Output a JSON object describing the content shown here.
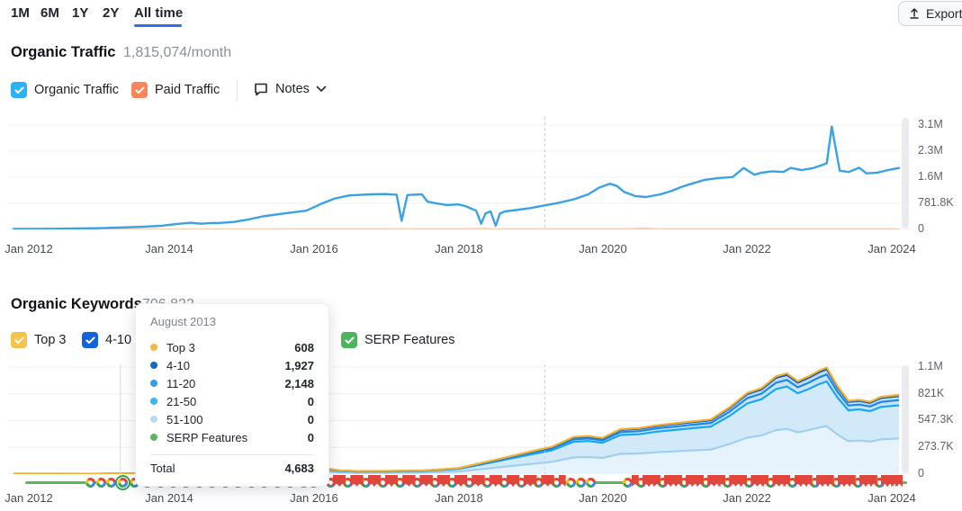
{
  "toolbar": {
    "ranges": [
      {
        "label": "1M"
      },
      {
        "label": "6M"
      },
      {
        "label": "1Y"
      },
      {
        "label": "2Y"
      },
      {
        "label": "All time"
      }
    ],
    "active_range": "All time",
    "export_label": "Export"
  },
  "traffic_section": {
    "title": "Organic Traffic",
    "value": "1,815,074/month",
    "legend_organic": "Organic Traffic",
    "legend_paid": "Paid Traffic",
    "notes_label": "Notes",
    "organic_checkbox_color": "#2cb1f2",
    "paid_checkbox_color": "#f9865a"
  },
  "keywords_section": {
    "title": "Organic Keywords",
    "value": "706,822",
    "legend_top3": "Top 3",
    "legend_410": "4-10",
    "legend_serp": "SERP Features",
    "top3_checkbox_color": "#f5c24b",
    "p410_checkbox_color": "#1464d8",
    "serp_checkbox_color": "#4db45e"
  },
  "tooltip": {
    "date": "August 2013",
    "rows": [
      {
        "label": "Top 3",
        "value": "608",
        "color": "#f6b93f"
      },
      {
        "label": "4-10",
        "value": "1,927",
        "color": "#1468c8"
      },
      {
        "label": "11-20",
        "value": "2,148",
        "color": "#2d9df0"
      },
      {
        "label": "21-50",
        "value": "0",
        "color": "#36b6f8"
      },
      {
        "label": "51-100",
        "value": "0",
        "color": "#b4dcf7"
      },
      {
        "label": "SERP Features",
        "value": "0",
        "color": "#5cb85c"
      }
    ],
    "total_label": "Total",
    "total_value": "4,683"
  },
  "chart_data": [
    {
      "type": "line",
      "title": "Organic Traffic",
      "unit": "thousands_per_month",
      "x_axis": {
        "ticks": [
          {
            "label": "Jan 2012",
            "year": 2012
          },
          {
            "label": "Jan 2014",
            "year": 2014
          },
          {
            "label": "Jan 2016",
            "year": 2016
          },
          {
            "label": "Jan 2018",
            "year": 2018
          },
          {
            "label": "Jan 2020",
            "year": 2020
          },
          {
            "label": "Jan 2022",
            "year": 2022
          },
          {
            "label": "Jan 2024",
            "year": 2024
          }
        ]
      },
      "y_axis": {
        "ticks": [
          {
            "label": "3.1M",
            "value": 3127
          },
          {
            "label": "2.3M",
            "value": 2345
          },
          {
            "label": "1.6M",
            "value": 1564
          },
          {
            "label": "781.8K",
            "value": 782
          },
          {
            "label": "0",
            "value": 0
          }
        ]
      },
      "dashed_line_year": 2019.2,
      "series": [
        {
          "name": "Organic Traffic",
          "color": "#3aa2e4",
          "width": 2.4,
          "x": [
            2011.85,
            2012.1,
            2012.4,
            2012.7,
            2013,
            2013.3,
            2013.6,
            2013.9,
            2014.1,
            2014.3,
            2014.45,
            2014.55,
            2014.7,
            2014.9,
            2015.1,
            2015.3,
            2015.6,
            2015.9,
            2016.1,
            2016.3,
            2016.5,
            2016.8,
            2017,
            2017.15,
            2017.22,
            2017.3,
            2017.5,
            2017.58,
            2017.7,
            2017.85,
            2018,
            2018.1,
            2018.25,
            2018.32,
            2018.38,
            2018.45,
            2018.52,
            2018.58,
            2018.65,
            2018.8,
            2019,
            2019.2,
            2019.4,
            2019.6,
            2019.8,
            2019.95,
            2020.1,
            2020.2,
            2020.3,
            2020.45,
            2020.6,
            2020.7,
            2020.8,
            2020.95,
            2021.1,
            2021.25,
            2021.4,
            2021.6,
            2021.8,
            2021.95,
            2022.1,
            2022.2,
            2022.35,
            2022.5,
            2022.6,
            2022.75,
            2022.9,
            2023,
            2023.1,
            2023.17,
            2023.28,
            2023.4,
            2023.55,
            2023.65,
            2023.8,
            2023.95,
            2024.1
          ],
          "values": [
            15,
            17,
            20,
            26,
            35,
            55,
            75,
            110,
            160,
            200,
            170,
            185,
            195,
            225,
            300,
            390,
            480,
            560,
            760,
            930,
            1020,
            1050,
            1060,
            1040,
            260,
            1030,
            1050,
            830,
            780,
            730,
            750,
            700,
            560,
            170,
            480,
            540,
            110,
            480,
            540,
            580,
            640,
            720,
            800,
            900,
            1050,
            1250,
            1370,
            1300,
            1120,
            1000,
            970,
            1010,
            1050,
            1150,
            1280,
            1380,
            1480,
            1540,
            1570,
            1840,
            1640,
            1700,
            1740,
            1720,
            1840,
            1780,
            1830,
            1900,
            1980,
            3080,
            1760,
            1720,
            1850,
            1680,
            1700,
            1780,
            1840
          ]
        },
        {
          "name": "Paid Traffic",
          "color": "#f7cdb1",
          "width": 2,
          "x": [
            2011.85,
            2016,
            2018.1,
            2018.3,
            2018.5,
            2020.3,
            2020.55,
            2020.8,
            2024.1
          ],
          "values": [
            4,
            5,
            6,
            22,
            6,
            8,
            30,
            8,
            6
          ]
        }
      ]
    },
    {
      "type": "area",
      "stacked": true,
      "title": "Organic Keywords",
      "unit": "thousands_of_keywords",
      "x_axis": {
        "ticks": [
          {
            "label": "Jan 2012",
            "year": 2012
          },
          {
            "label": "Jan 2014",
            "year": 2014
          },
          {
            "label": "Jan 2016",
            "year": 2016
          },
          {
            "label": "Jan 2018",
            "year": 2018
          },
          {
            "label": "Jan 2020",
            "year": 2020
          },
          {
            "label": "Jan 2022",
            "year": 2022
          },
          {
            "label": "Jan 2024",
            "year": 2024
          }
        ]
      },
      "y_axis": {
        "ticks": [
          {
            "label": "1.1M",
            "value": 1095
          },
          {
            "label": "821K",
            "value": 821
          },
          {
            "label": "547.3K",
            "value": 547
          },
          {
            "label": "273.7K",
            "value": 274
          },
          {
            "label": "0",
            "value": 0
          }
        ]
      },
      "dashed_line_year": 2019.2,
      "hover_line_year": 2013.33,
      "stack_order": [
        "51-100",
        "21-50",
        "11-20",
        "4-10",
        "Top 3"
      ],
      "x": [
        2011.85,
        2012.5,
        2013,
        2013.5,
        2014,
        2014.5,
        2015,
        2015.5,
        2016,
        2016.2,
        2016.35,
        2016.6,
        2017,
        2017.5,
        2018,
        2018.3,
        2018.6,
        2019,
        2019.3,
        2019.6,
        2019.8,
        2020,
        2020.25,
        2020.5,
        2020.75,
        2021,
        2021.25,
        2021.5,
        2021.75,
        2022,
        2022.2,
        2022.4,
        2022.55,
        2022.7,
        2022.85,
        2023,
        2023.1,
        2023.25,
        2023.4,
        2023.55,
        2023.7,
        2023.85,
        2024.1
      ],
      "series": [
        {
          "name": "Top 3",
          "line_color": "#f2b12e",
          "fill_color": "#badbf4",
          "values": [
            0,
            0,
            1,
            1,
            1,
            1,
            1,
            1,
            1,
            1,
            1,
            1,
            1,
            1,
            1,
            2,
            2,
            3,
            4,
            6,
            6,
            6,
            7,
            7,
            8,
            8,
            8,
            8,
            10,
            12,
            13,
            15,
            15,
            14,
            15,
            16,
            16,
            14,
            11,
            11,
            11,
            12,
            12
          ]
        },
        {
          "name": "4-10",
          "line_color": "#0d58c6",
          "fill_color": "#c1dff6",
          "values": [
            0,
            0,
            0,
            0,
            1,
            1,
            1,
            2,
            2,
            3,
            2,
            2,
            2,
            2,
            3,
            6,
            8,
            12,
            14,
            19,
            20,
            19,
            23,
            24,
            25,
            26,
            27,
            28,
            34,
            42,
            44,
            50,
            52,
            48,
            50,
            53,
            55,
            45,
            38,
            38,
            37,
            40,
            41
          ]
        },
        {
          "name": "11-20",
          "line_color": "#1e88e5",
          "fill_color": "#c9e4f7",
          "values": [
            0,
            0,
            0,
            0,
            1,
            1,
            2,
            2,
            3,
            4,
            2,
            2,
            2,
            2,
            4,
            7,
            10,
            15,
            18,
            25,
            25,
            24,
            30,
            31,
            33,
            34,
            35,
            36,
            44,
            54,
            57,
            65,
            67,
            62,
            65,
            69,
            71,
            59,
            49,
            49,
            48,
            51,
            53
          ]
        },
        {
          "name": "21-50",
          "line_color": "#19a6f3",
          "fill_color": "#d2e9f9",
          "values": [
            0,
            1,
            2,
            3,
            5,
            8,
            10,
            15,
            17,
            23,
            16,
            13,
            13,
            15,
            25,
            46,
            67,
            97,
            118,
            160,
            164,
            155,
            193,
            197,
            210,
            218,
            227,
            235,
            286,
            349,
            370,
            420,
            433,
            399,
            420,
            445,
            458,
            378,
            315,
            319,
            311,
            332,
            340
          ]
        },
        {
          "name": "51-100",
          "line_color": "#9fd0f0",
          "fill_color": "#e7f3fc",
          "values": [
            1,
            1,
            2,
            3,
            5,
            8,
            12,
            15,
            17,
            24,
            17,
            13,
            14,
            16,
            27,
            49,
            73,
            103,
            126,
            170,
            175,
            166,
            207,
            211,
            224,
            234,
            243,
            252,
            306,
            373,
            396,
            450,
            463,
            427,
            450,
            477,
            490,
            404,
            337,
            343,
            333,
            355,
            364
          ]
        },
        {
          "name": "SERP Features",
          "line_color": "#3db760",
          "fill_color": "none",
          "values": [
            0,
            0,
            0,
            0,
            0,
            0,
            0,
            0,
            0,
            0,
            0,
            0,
            0,
            0,
            0,
            0,
            0,
            0,
            0,
            0,
            0,
            0,
            0,
            0,
            0,
            0,
            0,
            0,
            0,
            0,
            0,
            0,
            0,
            0,
            0,
            0,
            0,
            0,
            0,
            0,
            0,
            0,
            0
          ]
        }
      ]
    }
  ],
  "timeline": {
    "line_color": "#56b85b",
    "highlighted_update": 2013.36,
    "google_updates": [
      2012.92,
      2013.06,
      2013.2,
      2013.52,
      2013.7,
      2013.88,
      2014.06,
      2014.24,
      2014.42,
      2014.6,
      2014.78,
      2014.96,
      2015.14,
      2015.32,
      2015.5,
      2015.68,
      2015.86,
      2016,
      2016.24,
      2016.48,
      2016.72,
      2016.96,
      2017.2,
      2017.44,
      2017.68,
      2017.92,
      2018.16,
      2018.4,
      2018.64,
      2018.88,
      2019.12,
      2019.36,
      2019.56,
      2019.7,
      2019.84,
      2020.35,
      2020.53,
      2020.83,
      2021.13,
      2021.43,
      2021.73,
      2022.03,
      2022.33,
      2022.63,
      2022.93,
      2023.23,
      2023.53,
      2023.83
    ],
    "note_flags": [
      2016.08,
      2016.16,
      2016.32,
      2016.4,
      2016.56,
      2016.64,
      2016.8,
      2016.88,
      2017.04,
      2017.12,
      2017.28,
      2017.36,
      2017.52,
      2017.6,
      2017.76,
      2017.84,
      2018,
      2018.08,
      2018.24,
      2018.32,
      2018.48,
      2018.56,
      2018.72,
      2018.8,
      2018.96,
      2019.04,
      2019.2,
      2019.28,
      2019.44,
      2020.45,
      2020.6,
      2020.68,
      2020.75,
      2020.9,
      2020.98,
      2021.05,
      2021.2,
      2021.28,
      2021.35,
      2021.5,
      2021.58,
      2021.65,
      2021.8,
      2021.88,
      2021.95,
      2022.1,
      2022.18,
      2022.25,
      2022.4,
      2022.48,
      2022.55,
      2022.7,
      2022.78,
      2022.85,
      2023,
      2023.08,
      2023.15,
      2023.3,
      2023.38,
      2023.45,
      2023.6,
      2023.68,
      2023.75,
      2023.9,
      2023.98,
      2024.04,
      2024.1
    ]
  }
}
